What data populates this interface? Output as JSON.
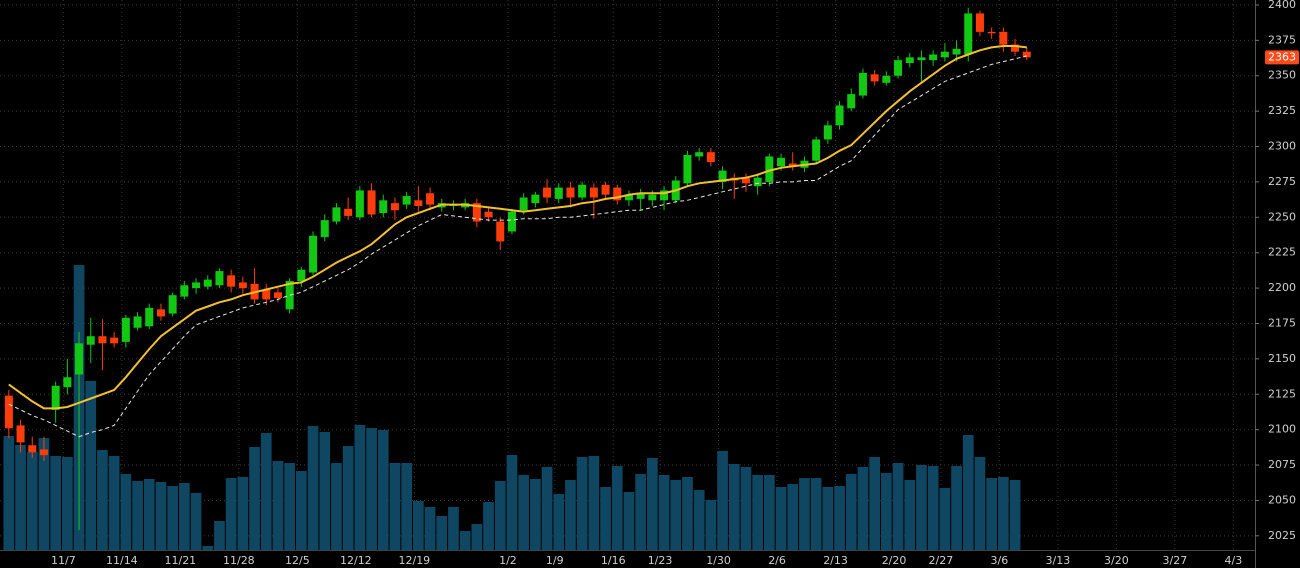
{
  "chart_data": {
    "type": "candlestick",
    "categories": [
      null,
      null,
      null,
      null,
      null,
      "11/7",
      null,
      null,
      null,
      null,
      "11/14",
      null,
      null,
      null,
      null,
      "11/21",
      null,
      null,
      null,
      null,
      "11/28",
      null,
      null,
      null,
      null,
      "12/5",
      null,
      null,
      null,
      null,
      "12/12",
      null,
      null,
      null,
      null,
      "12/19",
      null,
      null,
      null,
      null,
      null,
      null,
      null,
      "1/2",
      null,
      null,
      null,
      "1/9",
      null,
      null,
      null,
      null,
      "1/16",
      null,
      null,
      null,
      "1/23",
      null,
      null,
      null,
      null,
      "1/30",
      null,
      null,
      null,
      null,
      "2/6",
      null,
      null,
      null,
      null,
      "2/13",
      null,
      null,
      null,
      null,
      "2/20",
      null,
      null,
      null,
      "2/27",
      null,
      null,
      null,
      null,
      "3/6",
      null,
      null,
      null,
      null,
      "3/13",
      null,
      null,
      null,
      null,
      "3/20",
      null,
      null,
      null,
      null,
      "3/27",
      null,
      null,
      null,
      null,
      "4/3",
      null
    ],
    "open": [
      2124,
      2103,
      2089,
      2086,
      2114,
      2130,
      2139,
      2160,
      2166,
      2165,
      2162,
      2172,
      2173,
      2185,
      2182,
      2194,
      2200,
      2201,
      2202,
      2209,
      2204,
      2203,
      2199,
      2197,
      2185,
      2205,
      2211,
      2236,
      2247,
      2256,
      2250,
      2269,
      2253,
      2260,
      2259,
      2262,
      2267,
      2257,
      2258,
      2257,
      2260,
      2254,
      2247,
      2240,
      2255,
      2260,
      2271,
      2263,
      2271,
      2264,
      2271,
      2273,
      2271,
      2262,
      2263,
      2262,
      2262,
      2262,
      2274,
      2293,
      2296,
      2275,
      2278,
      2278,
      2272,
      2275,
      2286,
      2288,
      2285,
      2290,
      2305,
      2315,
      2327,
      2336,
      2351,
      2345,
      2350,
      2359,
      2361,
      2361,
      2363,
      2365,
      2365,
      2394,
      2381,
      2381,
      2372,
      2367,
      null,
      null,
      null,
      null,
      null,
      null,
      null,
      null,
      null,
      null,
      null,
      null,
      null,
      null,
      null,
      null,
      null,
      null,
      null
    ],
    "high": [
      2128,
      2107,
      2095,
      2095,
      2134,
      2150,
      2169,
      2179,
      2178,
      2169,
      2181,
      2183,
      2189,
      2189,
      2197,
      2205,
      2207,
      2209,
      2214,
      2213,
      2208,
      2214,
      2203,
      2200,
      2207,
      2215,
      2240,
      2252,
      2260,
      2264,
      2272,
      2274,
      2266,
      2264,
      2268,
      2272,
      2271,
      2263,
      2262,
      2263,
      2263,
      2257,
      2250,
      2256,
      2267,
      2268,
      2277,
      2274,
      2275,
      2275,
      2274,
      2275,
      2273,
      2269,
      2270,
      2269,
      2272,
      2279,
      2297,
      2299,
      2299,
      2286,
      2281,
      2281,
      2281,
      2295,
      2295,
      2296,
      2293,
      2307,
      2318,
      2332,
      2341,
      2355,
      2354,
      2353,
      2364,
      2366,
      2368,
      2368,
      2373,
      2375,
      2398,
      2396,
      2384,
      2384,
      2376,
      2370,
      null,
      null,
      null,
      null,
      null,
      null,
      null,
      null,
      null,
      null,
      null,
      null,
      null,
      null,
      null,
      null,
      null,
      null,
      null
    ],
    "low": [
      2094,
      2084,
      2080,
      2078,
      2105,
      2125,
      2029,
      2147,
      2142,
      2158,
      2158,
      2170,
      2171,
      2177,
      2180,
      2192,
      2196,
      2199,
      2200,
      2197,
      2196,
      2189,
      2188,
      2190,
      2182,
      2201,
      2209,
      2233,
      2245,
      2248,
      2248,
      2250,
      2250,
      2248,
      2256,
      2254,
      2255,
      2254,
      2255,
      2255,
      2243,
      2247,
      2227,
      2238,
      2252,
      2257,
      2260,
      2260,
      2257,
      2262,
      2249,
      2262,
      2259,
      2258,
      2255,
      2258,
      2255,
      2260,
      2272,
      2290,
      2286,
      2270,
      2263,
      2268,
      2266,
      2272,
      2283,
      2283,
      2282,
      2288,
      2302,
      2312,
      2325,
      2334,
      2343,
      2343,
      2348,
      2356,
      2345,
      2357,
      2360,
      2360,
      2360,
      2378,
      2376,
      2367,
      2364,
      2361,
      null,
      null,
      null,
      null,
      null,
      null,
      null,
      null,
      null,
      null,
      null,
      null,
      null,
      null,
      null,
      null,
      null,
      null,
      null
    ],
    "close": [
      2101,
      2091,
      2084,
      2082,
      2131,
      2137,
      2161,
      2166,
      2161,
      2161,
      2179,
      2180,
      2186,
      2180,
      2195,
      2202,
      2204,
      2206,
      2212,
      2201,
      2200,
      2192,
      2192,
      2193,
      2205,
      2213,
      2237,
      2248,
      2257,
      2251,
      2269,
      2252,
      2262,
      2255,
      2265,
      2258,
      2259,
      2260,
      2259,
      2260,
      2247,
      2250,
      2233,
      2254,
      2264,
      2266,
      2264,
      2271,
      2264,
      2273,
      2264,
      2266,
      2262,
      2266,
      2267,
      2266,
      2269,
      2276,
      2294,
      2296,
      2289,
      2283,
      2276,
      2274,
      2278,
      2293,
      2292,
      2286,
      2290,
      2305,
      2315,
      2329,
      2337,
      2352,
      2346,
      2350,
      2361,
      2363,
      2363,
      2365,
      2367,
      2369,
      2394,
      2381,
      2380,
      2372,
      2367,
      2363,
      null,
      null,
      null,
      null,
      null,
      null,
      null,
      null,
      null,
      null,
      null,
      null,
      null,
      null,
      null,
      null,
      null,
      null,
      null
    ],
    "volume": [
      1140,
      1050,
      980,
      1120,
      940,
      930,
      2850,
      1690,
      1000,
      940,
      760,
      690,
      710,
      680,
      640,
      670,
      570,
      40,
      290,
      720,
      730,
      1030,
      1170,
      890,
      870,
      790,
      1240,
      1180,
      870,
      1040,
      1250,
      1220,
      1200,
      870,
      870,
      490,
      430,
      340,
      430,
      190,
      260,
      480,
      690,
      950,
      750,
      710,
      830,
      560,
      700,
      930,
      940,
      630,
      840,
      580,
      760,
      920,
      750,
      700,
      730,
      600,
      500,
      990,
      860,
      830,
      750,
      750,
      630,
      660,
      720,
      720,
      630,
      640,
      760,
      830,
      930,
      770,
      870,
      700,
      850,
      840,
      620,
      840,
      1150,
      930,
      720,
      730,
      700,
      null,
      null,
      null,
      null,
      null,
      null,
      null,
      null,
      null,
      null,
      null,
      null,
      null,
      null,
      null,
      null,
      null,
      null,
      null,
      null
    ],
    "moving_averages": [
      {
        "color": "#f2c12e",
        "style": "solid",
        "values": [
          2132,
          2126,
          2120,
          2115,
          2115,
          2116,
          2119,
          2122,
          2125,
          2128,
          2137,
          2147,
          2157,
          2166,
          2172,
          2178,
          2184,
          2187,
          2190,
          2192,
          2195,
          2197,
          2199,
          2201,
          2203,
          2204,
          2208,
          2213,
          2218,
          2222,
          2226,
          2231,
          2238,
          2245,
          2250,
          2253,
          2256,
          2259,
          2259,
          2259,
          2258,
          2257,
          2256,
          2255,
          2254,
          2255,
          2256,
          2257,
          2258,
          2260,
          2261,
          2263,
          2264,
          2266,
          2267,
          2267,
          2267,
          2269,
          2272,
          2274,
          2275,
          2276,
          2277,
          2278,
          2280,
          2283,
          2285,
          2286,
          2287,
          2288,
          2292,
          2297,
          2301,
          2309,
          2317,
          2325,
          2332,
          2339,
          2345,
          2351,
          2357,
          2362,
          2365,
          2368,
          2370,
          2371,
          2371,
          2370,
          null,
          null,
          null,
          null,
          null,
          null,
          null,
          null,
          null,
          null,
          null,
          null,
          null,
          null,
          null,
          null,
          null,
          null,
          null
        ]
      },
      {
        "color": "#e8e8e8",
        "style": "dashed",
        "values": [
          2118,
          2114,
          2110,
          2107,
          2103,
          2099,
          2095,
          2098,
          2100,
          2103,
          2115,
          2127,
          2139,
          2148,
          2157,
          2166,
          2174,
          2177,
          2180,
          2183,
          2186,
          2188,
          2190,
          2192,
          2195,
          2197,
          2201,
          2205,
          2209,
          2213,
          2218,
          2224,
          2229,
          2234,
          2239,
          2244,
          2248,
          2252,
          2251,
          2250,
          2249,
          2248,
          2248,
          2248,
          2249,
          2249,
          2249,
          2250,
          2250,
          2251,
          2252,
          2253,
          2254,
          2255,
          2255,
          2257,
          2259,
          2261,
          2262,
          2264,
          2266,
          2268,
          2270,
          2272,
          2274,
          2274,
          2275,
          2275,
          2276,
          2276,
          2281,
          2286,
          2290,
          2299,
          2308,
          2317,
          2326,
          2331,
          2336,
          2341,
          2346,
          2349,
          2352,
          2355,
          2358,
          2360,
          2362,
          2364,
          null,
          null,
          null,
          null,
          null,
          null,
          null,
          null,
          null,
          null,
          null,
          null,
          null,
          null,
          null,
          null,
          null,
          null,
          null
        ]
      }
    ],
    "up_color": "#12c812",
    "down_color": "#ff3d0a",
    "volume_color": "#0f4763",
    "last_price_color": "#ff4a1a",
    "ylim": [
      2015,
      2403.5
    ],
    "yticks": [
      2025,
      2050,
      2075,
      2100,
      2125,
      2150,
      2175,
      2200,
      2225,
      2250,
      2275,
      2300,
      2325,
      2350,
      2375,
      2400
    ],
    "y2lim": [
      0,
      5500
    ],
    "grid": true
  }
}
